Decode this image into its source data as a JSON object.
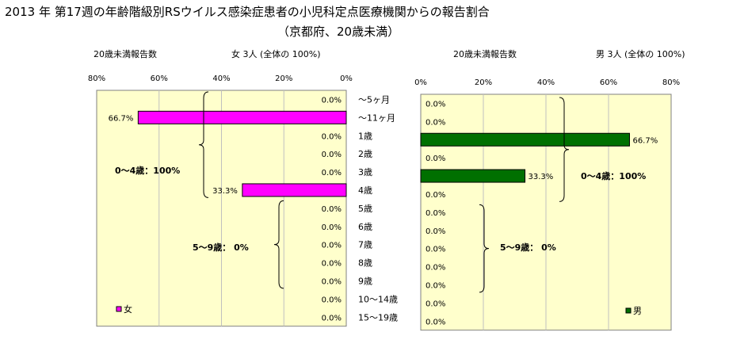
{
  "title": "2013 年 第17週の年齢階級別RSウイルス感染症患者の小児科定点医療機関からの報告割合",
  "subtitle": "（京都府、20歳未満）",
  "colors": {
    "female": "#ff00ff",
    "male": "#007000",
    "plot_bg": "#ffffcc",
    "grid": "#c0c0c0"
  },
  "chart_data": [
    {
      "type": "bar",
      "orientation": "horizontal",
      "direction": "leftward",
      "caption_left": "20歳未満報告数",
      "caption_right": "女  3人 (全体の  100%)",
      "legend": "女",
      "legend_position": "bottom-left",
      "xlim": [
        0,
        80
      ],
      "ticks": [
        "80%",
        "60%",
        "40%",
        "20%",
        "0%"
      ],
      "categories": [
        "～5ヶ月",
        "～11ヶ月",
        "1歳",
        "2歳",
        "3歳",
        "4歳",
        "5歳",
        "6歳",
        "7歳",
        "8歳",
        "9歳",
        "10～14歳",
        "15～19歳"
      ],
      "values": [
        0,
        66.7,
        0,
        0,
        0,
        33.3,
        0,
        0,
        0,
        0,
        0,
        0,
        0
      ],
      "labels": [
        "0.0%",
        "66.7%",
        "0.0%",
        "0.0%",
        "0.0%",
        "33.3%",
        "0.0%",
        "0.0%",
        "0.0%",
        "0.0%",
        "0.0%",
        "0.0%",
        "0.0%"
      ],
      "groups": [
        {
          "text": "0～4歳：100%",
          "from": 0,
          "to": 5
        },
        {
          "text": "5～9歳：  0%",
          "from": 6,
          "to": 10
        }
      ],
      "grid": true
    },
    {
      "type": "bar",
      "orientation": "horizontal",
      "direction": "rightward",
      "caption_left": "20歳未満報告数",
      "caption_right": "男  3人 (全体の  100%)",
      "legend": "男",
      "legend_position": "bottom-right",
      "xlim": [
        0,
        80
      ],
      "ticks": [
        "0%",
        "20%",
        "40%",
        "60%",
        "80%"
      ],
      "categories": [
        "～5ヶ月",
        "～11ヶ月",
        "1歳",
        "2歳",
        "3歳",
        "4歳",
        "5歳",
        "6歳",
        "7歳",
        "8歳",
        "9歳",
        "10～14歳",
        "15～19歳"
      ],
      "values": [
        0,
        0,
        66.7,
        0,
        33.3,
        0,
        0,
        0,
        0,
        0,
        0,
        0,
        0
      ],
      "labels": [
        "0.0%",
        "0.0%",
        "66.7%",
        "0.0%",
        "33.3%",
        "0.0%",
        "0.0%",
        "0.0%",
        "0.0%",
        "0.0%",
        "0.0%",
        "0.0%",
        "0.0%"
      ],
      "groups": [
        {
          "text": "0～4歳：100%",
          "from": 0,
          "to": 5
        },
        {
          "text": "5～9歳：  0%",
          "from": 6,
          "to": 10
        }
      ],
      "grid": true
    }
  ]
}
